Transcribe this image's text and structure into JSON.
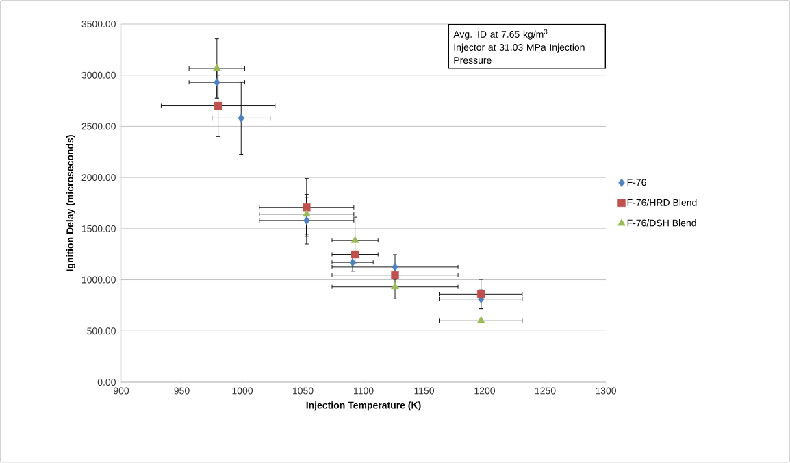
{
  "chart_data": {
    "type": "scatter",
    "xlabel": "Injection Temperature (K)",
    "ylabel": "Ignition Delay (microseconds)",
    "xlim": [
      900,
      1300
    ],
    "xticks": [
      900,
      950,
      1000,
      1050,
      1100,
      1150,
      1200,
      1250,
      1300
    ],
    "ylim": [
      0,
      3500
    ],
    "yticks": [
      {
        "value": 0,
        "label": "0.00"
      },
      {
        "value": 500,
        "label": "500.00"
      },
      {
        "value": 1000,
        "label": "1000.00"
      },
      {
        "value": 1500,
        "label": "1500.00"
      },
      {
        "value": 2000,
        "label": "2000.00"
      },
      {
        "value": 2500,
        "label": "2500.00"
      },
      {
        "value": 3000,
        "label": "3000.00"
      },
      {
        "value": 3500,
        "label": "3500.00"
      }
    ],
    "grid": "y",
    "legend": "right",
    "annotations": [
      "Avg. ID at 7.65 kg/m$^{3}$",
      "Injector at 31.03 MPa Injection Pressure"
    ],
    "series": [
      {
        "name": "F-76",
        "color": "#4f81bd",
        "marker": "diamond",
        "x": [
          979,
          999,
          1053,
          1091,
          1126,
          1197
        ],
        "values": [
          2930,
          2580,
          1580,
          1170,
          1125,
          812
        ],
        "errors": [
          145,
          355,
          228,
          85,
          120,
          90
        ],
        "xerrors": [
          23,
          24,
          39,
          17,
          52,
          34
        ]
      },
      {
        "name": "F-76/HRD Blend",
        "color": "#c0504d",
        "marker": "square",
        "x": [
          980,
          1053,
          1093,
          1126,
          1197
        ],
        "values": [
          2700,
          1708,
          1248,
          1046,
          861
        ],
        "errors": [
          300,
          282,
          null,
          null,
          143
        ],
        "xerrors": [
          47,
          39,
          19,
          52,
          34
        ]
      },
      {
        "name": "F-76/DSH Blend",
        "color": "#9bbb59",
        "marker": "triangle",
        "x": [
          979,
          1053,
          1093,
          1126,
          1197
        ],
        "values": [
          3065,
          1641,
          1384,
          932,
          600
        ],
        "errors": [
          290,
          195,
          228,
          118,
          null
        ],
        "xerrors": [
          23,
          39,
          19,
          52,
          34
        ]
      }
    ]
  }
}
